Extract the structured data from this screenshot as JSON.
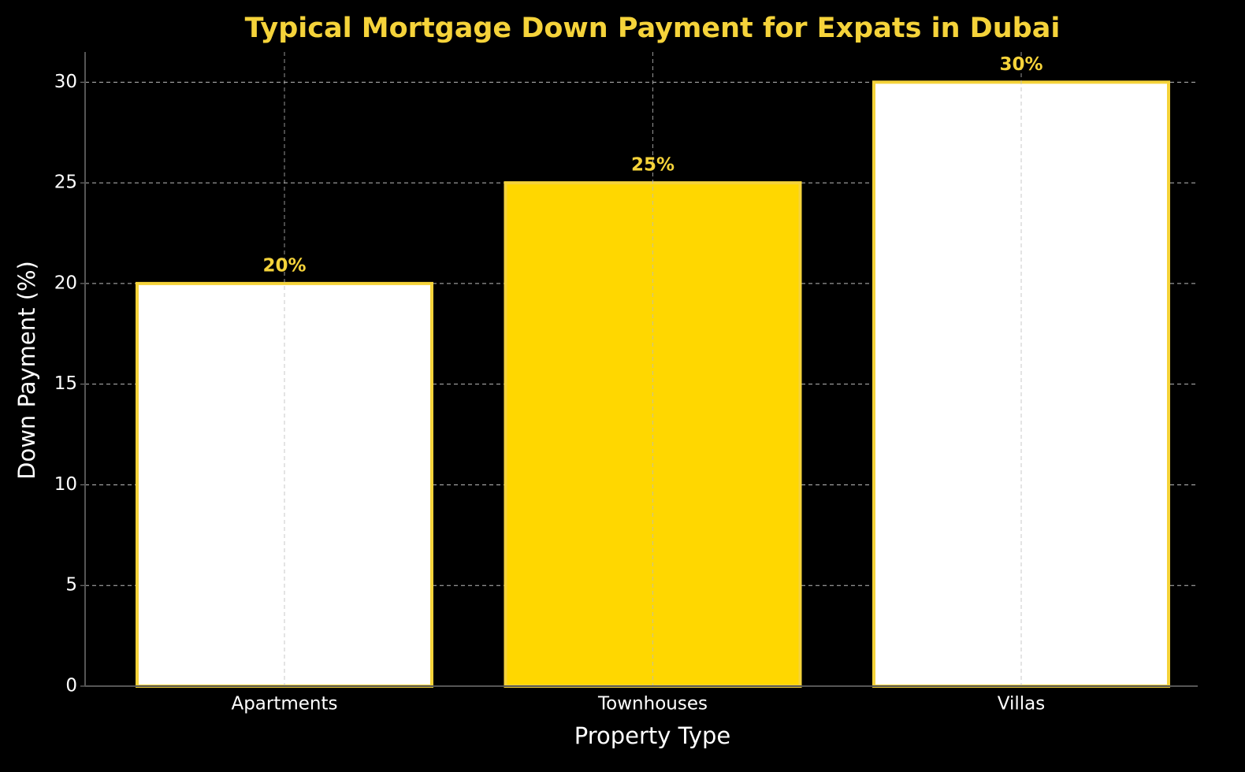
{
  "chart_data": {
    "type": "bar",
    "title": "Typical Mortgage Down Payment for Expats in Dubai",
    "x_label": "Property Type",
    "y_label": "Down Payment (%)",
    "categories": [
      "Apartments",
      "Townhouses",
      "Villas"
    ],
    "values": [
      20,
      25,
      30
    ],
    "value_labels": [
      "20%",
      "25%",
      "30%"
    ],
    "colors": [
      "#ffffff",
      "#ffd700",
      "#ffffff"
    ],
    "edge_color": "#f5d33a",
    "ylim": [
      0,
      31.5
    ],
    "yticks": [
      0,
      5,
      10,
      15,
      20,
      25,
      30
    ],
    "grid": true
  }
}
